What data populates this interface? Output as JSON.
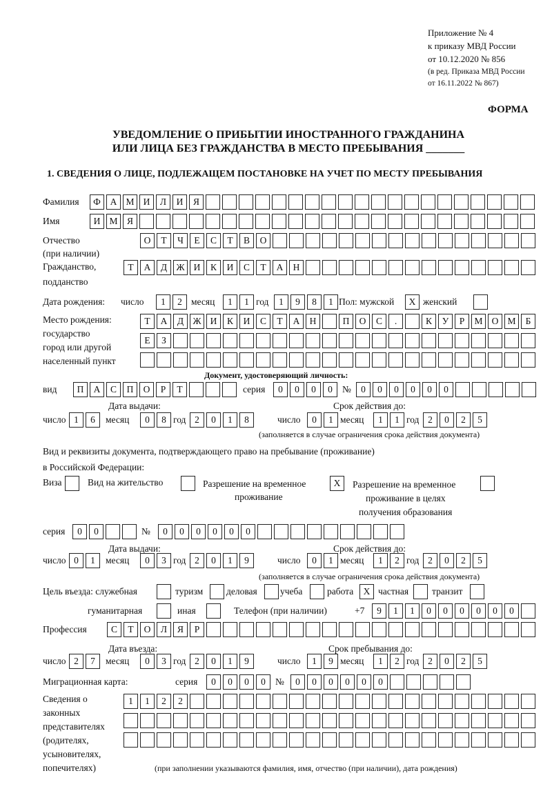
{
  "header": {
    "appendix": [
      "Приложение № 4",
      "к приказу МВД России",
      "от 10.12.2020 № 856"
    ],
    "revision": [
      "(в ред. Приказа МВД России",
      "от 16.11.2022 № 867)"
    ],
    "form_label": "ФОРМА",
    "title_line1": "УВЕДОМЛЕНИЕ О ПРИБЫТИИ ИНОСТРАННОГО ГРАЖДАНИНА",
    "title_line2": "ИЛИ ЛИЦА БЕЗ ГРАЖДАНСТВА В МЕСТО ПРЕБЫВАНИЯ _______",
    "section1": "1. СВЕДЕНИЯ О ЛИЦЕ, ПОДЛЕЖАЩЕМ ПОСТАНОВКЕ НА УЧЕТ ПО МЕСТУ ПРЕБЫВАНИЯ"
  },
  "labels": {
    "surname": "Фамилия",
    "name": "Имя",
    "patronymic": "Отчество",
    "patronymic_note": "(при наличии)",
    "citizenship": "Гражданство,",
    "citizenship2": "подданство",
    "birth_date": "Дата рождения:",
    "day": "число",
    "month": "месяц",
    "year": "год",
    "sex_male": "Пол: мужской",
    "sex_female": "женский",
    "birthplace": [
      "Место рождения:",
      "государство",
      "город или другой",
      "населенный пункт"
    ],
    "id_doc": "Документ, удостоверяющий личность:",
    "kind": "вид",
    "series": "серия",
    "number": "№",
    "issue_date": "Дата выдачи:",
    "valid_until": "Срок действия до:",
    "valid_note": "(заполняется в случае ограничения срока действия документа)",
    "residence_doc1": "Вид и реквизиты документа, подтверждающего право на пребывание (проживание)",
    "residence_doc2": "в Российской Федерации:",
    "visa": "Виза",
    "residence_permit": "Вид на жительство",
    "temp_permit": [
      "Разрешение на временное",
      "проживание"
    ],
    "temp_permit_edu": [
      "Разрешение на временное",
      "проживание в целях",
      "получения образования"
    ],
    "purpose": "Цель въезда: служебная",
    "tourism": "туризм",
    "business": "деловая",
    "study": "учеба",
    "work": "работа",
    "private": "частная",
    "transit": "транзит",
    "humanitarian": "гуманитарная",
    "other": "иная",
    "phone": "Телефон (при наличии)",
    "phone_prefix": "+7",
    "profession": "Профессия",
    "entry_date": "Дата въезда:",
    "stay_until": "Срок пребывания до:",
    "migration_card": "Миграционная карта:",
    "representatives": [
      "Сведения о",
      "законных",
      "представителях",
      "(родителях,",
      "усыновителях,",
      "попечителях)"
    ],
    "representatives_note": "(при заполнении указываются фамилия, имя, отчество (при наличии), дата рождения)"
  },
  "fields": {
    "surname": "ФАМИЛИЯ",
    "name": "ИМЯ",
    "patronymic": "ОТЧЕСТВО",
    "citizenship": "ТАДЖИКИСТАН",
    "birth_day": "12",
    "birth_month": "11",
    "birth_year": "1981",
    "sex_male": "X",
    "sex_female": "",
    "birthplace1": "ТАДЖИКИСТАН ПОС. КУРМОМБ",
    "birthplace2": "ЕЗ",
    "birthplace3": "",
    "id_kind": "ПАСПОРТ",
    "id_series": "0000",
    "id_number": "000000",
    "id_issue_day": "16",
    "id_issue_month": "08",
    "id_issue_year": "2018",
    "id_valid_day": "01",
    "id_valid_month": "11",
    "id_valid_year": "2025",
    "visa": "",
    "residence_permit": "",
    "temp_permit": "X",
    "temp_permit_edu": "",
    "res_series": "00",
    "res_number": "000000",
    "res_issue_day": "01",
    "res_issue_month": "03",
    "res_issue_year": "2019",
    "res_valid_day": "01",
    "res_valid_month": "12",
    "res_valid_year": "2025",
    "purpose_official": "",
    "purpose_tourism": "",
    "purpose_business": "",
    "purpose_study": "",
    "purpose_work": "X",
    "purpose_private": "",
    "purpose_transit": "",
    "purpose_humanitarian": "",
    "purpose_other": "",
    "phone": "911000000",
    "profession": "СТОЛЯР",
    "entry_day": "27",
    "entry_month": "03",
    "entry_year": "2019",
    "stay_day": "19",
    "stay_month": "12",
    "stay_year": "2025",
    "mc_series": "0000",
    "mc_number": "000000",
    "rep1": "1122",
    "rep2": "",
    "rep3": ""
  }
}
